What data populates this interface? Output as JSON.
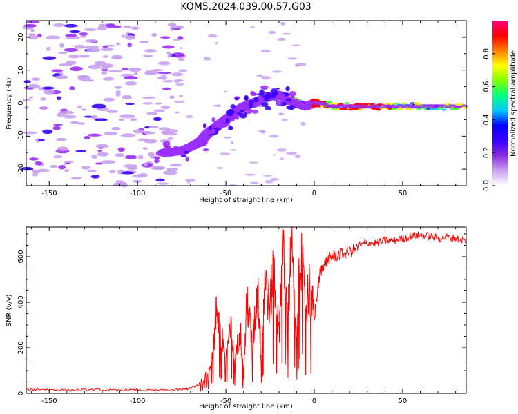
{
  "title": "KOM5.2024.039.00.57.G03",
  "chart_data": [
    {
      "type": "heatmap",
      "xlabel": "Height of straight line (km)",
      "ylabel": "Frequency (Hz)",
      "xlim": [
        -163,
        86
      ],
      "ylim": [
        -25,
        25
      ],
      "xticks": [
        -150,
        -100,
        -50,
        0,
        50
      ],
      "yticks": [
        -20,
        -10,
        0,
        10,
        20
      ],
      "colorbar": {
        "label": "Normalized spectral amplitude",
        "range": [
          0,
          1
        ],
        "ticks": [
          0.0,
          0.2,
          0.4,
          0.6,
          0.8
        ],
        "colormap": [
          "#ffffff",
          "#c8a0f0",
          "#8a2be2",
          "#3a00ff",
          "#0000ff",
          "#00c8ff",
          "#00ff80",
          "#80ff00",
          "#ffff00",
          "#ff8000",
          "#ff0000",
          "#ff0080"
        ]
      },
      "colors": {
        "noise": "#c8a0f0",
        "low": "#9b30ff",
        "mid": "#3a00ff",
        "cyan": "#00d0ff",
        "green": "#40ff40",
        "yellow": "#f0f000",
        "red": "#ff0000"
      },
      "ridge": {
        "x": [
          -85,
          -75,
          -65,
          -60,
          -55,
          -50,
          -45,
          -40,
          -35,
          -30,
          -25,
          -20,
          -15,
          -10,
          -5,
          0,
          5,
          10,
          20,
          30,
          40,
          50,
          60,
          70,
          86
        ],
        "y": [
          -15,
          -14.5,
          -12,
          -9,
          -7,
          -5,
          -3,
          -1,
          0,
          1,
          2,
          2.5,
          1.5,
          0,
          -1,
          0,
          0,
          -1,
          -1,
          -1,
          -1,
          -1,
          -1,
          -1,
          -1
        ],
        "amplitude": [
          0.15,
          0.15,
          0.2,
          0.2,
          0.22,
          0.25,
          0.28,
          0.3,
          0.35,
          0.4,
          0.4,
          0.38,
          0.45,
          0.5,
          0.35,
          0.9,
          0.85,
          0.6,
          0.8,
          0.95,
          0.9,
          0.6,
          0.5,
          0.45,
          0.55
        ]
      }
    },
    {
      "type": "line",
      "xlabel": "Height of straight line (km)",
      "ylabel": "SNR (v/v)",
      "xlim": [
        -163,
        86
      ],
      "ylim": [
        0,
        730
      ],
      "xticks": [
        -150,
        -100,
        -50,
        0,
        50
      ],
      "yticks": [
        0,
        200,
        400,
        600
      ],
      "color": "#ff0000",
      "series": [
        {
          "x": [
            -163,
            -155,
            -145,
            -135,
            -125,
            -115,
            -105,
            -95,
            -85,
            -75,
            -70,
            -65,
            -60,
            -57,
            -55,
            -53,
            -50,
            -47,
            -45,
            -42,
            -40,
            -38,
            -35,
            -32,
            -30,
            -28,
            -25,
            -23,
            -20,
            -18,
            -15,
            -13,
            -10,
            -8,
            -5,
            -3,
            0,
            3,
            5,
            8,
            10,
            15,
            20,
            25,
            30,
            35,
            40,
            45,
            50,
            55,
            60,
            65,
            70,
            75,
            80,
            86
          ],
          "y": [
            15,
            18,
            15,
            14,
            16,
            13,
            15,
            13,
            14,
            16,
            22,
            40,
            90,
            210,
            390,
            250,
            180,
            280,
            120,
            300,
            80,
            420,
            200,
            470,
            150,
            500,
            380,
            560,
            250,
            640,
            320,
            660,
            200,
            680,
            350,
            480,
            330,
            520,
            560,
            590,
            600,
            610,
            620,
            640,
            660,
            660,
            670,
            670,
            680,
            690,
            695,
            690,
            680,
            685,
            680,
            670
          ]
        }
      ]
    }
  ]
}
